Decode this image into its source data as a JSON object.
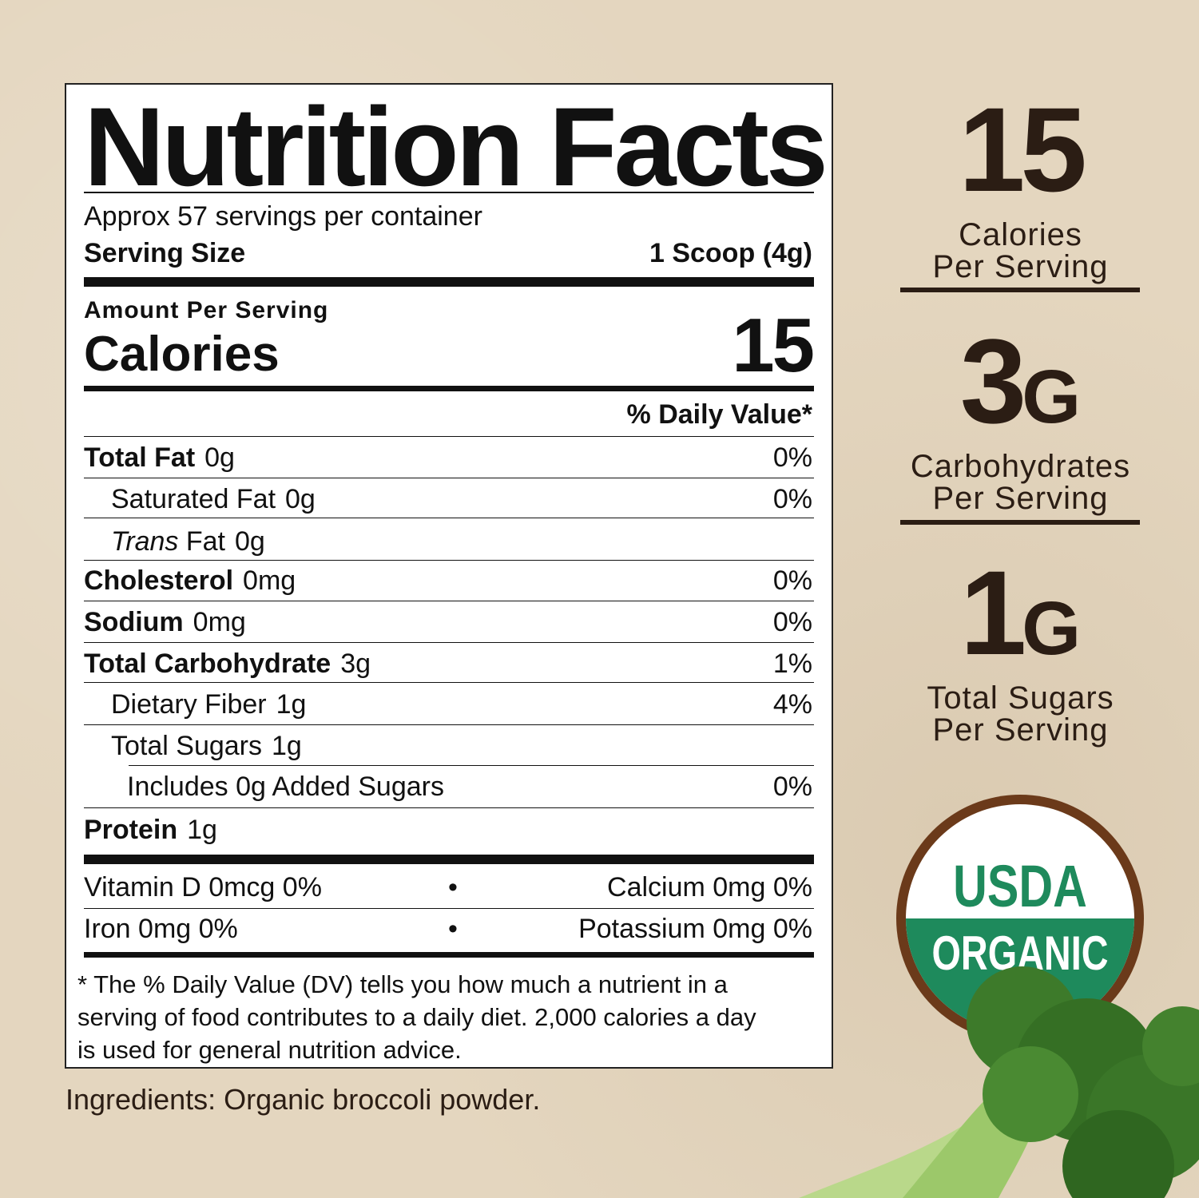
{
  "label": {
    "title": "Nutrition Facts",
    "servings": "Approx 57 servings per container",
    "serving_size_label": "Serving Size",
    "serving_size_value": "1 Scoop (4g)",
    "amount_per_serving": "Amount Per Serving",
    "calories_label": "Calories",
    "calories_value": "15",
    "dv_header": "% Daily Value*",
    "rows": [
      {
        "name": "Total Fat",
        "amount": "0g",
        "dv": "0%"
      },
      {
        "name": "Saturated Fat",
        "amount": "0g",
        "dv": "0%"
      },
      {
        "name": "Trans",
        "name_rest": "Fat",
        "amount": "0g",
        "dv": ""
      },
      {
        "name": "Cholesterol",
        "amount": "0mg",
        "dv": "0%"
      },
      {
        "name": "Sodium",
        "amount": "0mg",
        "dv": "0%"
      },
      {
        "name": "Total Carbohydrate",
        "amount": "3g",
        "dv": "1%"
      },
      {
        "name": "Dietary Fiber",
        "amount": "1g",
        "dv": "4%"
      },
      {
        "name": "Total Sugars",
        "amount": "1g",
        "dv": ""
      },
      {
        "name": "Includes 0g Added Sugars",
        "amount": "",
        "dv": "0%"
      },
      {
        "name": "Protein",
        "amount": "1g",
        "dv": ""
      }
    ],
    "micros": [
      {
        "left": "Vitamin D  0mcg  0%",
        "right": "Calcium  0mg  0%"
      },
      {
        "left": "Iron  0mg  0%",
        "right": "Potassium  0mg  0%"
      }
    ],
    "footnote": [
      "* The % Daily Value (DV) tells you how much a nutrient in a",
      "serving of food contributes to a daily diet. 2,000 calories a day",
      "is used for general nutrition advice."
    ]
  },
  "ingredients": "Ingredients: Organic broccoli powder.",
  "highlights": [
    {
      "value": "15",
      "unit": "",
      "line1": "Calories",
      "line2": "Per Serving"
    },
    {
      "value": "3",
      "unit": "G",
      "line1": "Carbohydrates",
      "line2": "Per Serving"
    },
    {
      "value": "1",
      "unit": "G",
      "line1": "Total Sugars",
      "line2": "Per Serving"
    }
  ],
  "seal": {
    "top": "USDA",
    "bottom": "ORGANIC"
  },
  "colors": {
    "background": "#e4d6bf",
    "text_brown": "#2b1d14",
    "seal_green": "#1e8a5c",
    "seal_ring": "#6b3a1a"
  }
}
